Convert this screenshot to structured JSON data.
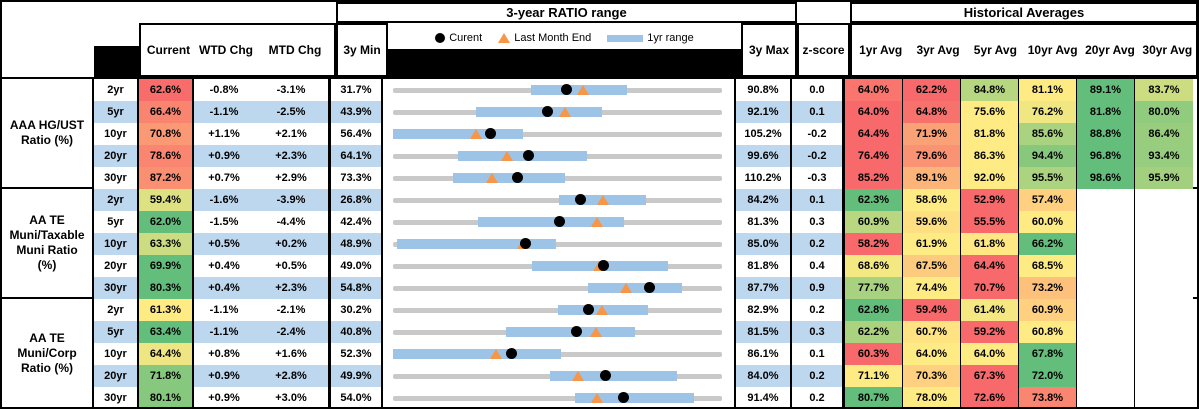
{
  "titles": {
    "range_header": "3-year RATIO range",
    "hist_header": "Historical Averages"
  },
  "legend": {
    "current": "Curent",
    "last_month": "Last Month End",
    "range": "1yr range"
  },
  "columns": {
    "current": "Current",
    "wtd": "WTD Chg",
    "mtd": "MTD Chg",
    "min": "3y Min",
    "max": "3y Max",
    "z": "z-score",
    "avgs": [
      "1yr Avg",
      "3yr Avg",
      "5yr Avg",
      "10yr Avg",
      "20yr Avg",
      "30yr Avg"
    ]
  },
  "colors": {
    "scale_red": "#F8696B",
    "scale_yellow": "#FFEB84",
    "scale_green": "#63BE7B",
    "stripe_blue": "#BDD7EE",
    "range_bar_blue": "#9DC3E6",
    "track_gray": "#C9C9C9",
    "triangle_orange": "#F79646",
    "marker_black": "#000000"
  },
  "chart_data": {
    "type": "table",
    "note": "Muni ratio dashboard: per-row dot = Current, triangle = Last Month End (current - MTD chg), blue bar = 1yr range plotted on 3yMin..3yMax axis",
    "sections": [
      {
        "label": "AAA HG/UST Ratio (%)",
        "label_lines": [
          "AAA HG/UST",
          "Ratio (%)"
        ],
        "rows": [
          {
            "tenor": "2yr",
            "current": 62.6,
            "wtd": -0.8,
            "mtd": -3.1,
            "min3y": 31.7,
            "max3y": 90.8,
            "z": 0.0,
            "range1yr": [
              56.4,
              73.4
            ],
            "avgs": [
              64.0,
              62.2,
              84.8,
              81.1,
              89.1,
              83.7
            ]
          },
          {
            "tenor": "5yr",
            "current": 66.4,
            "wtd": -1.1,
            "mtd": -2.5,
            "min3y": 43.9,
            "max3y": 92.1,
            "z": 0.1,
            "range1yr": [
              56.0,
              74.4
            ],
            "avgs": [
              64.0,
              64.8,
              75.6,
              76.2,
              81.8,
              80.0
            ]
          },
          {
            "tenor": "10yr",
            "current": 70.8,
            "wtd": 1.1,
            "mtd": 2.1,
            "min3y": 56.4,
            "max3y": 105.2,
            "z": -0.2,
            "range1yr": [
              56.4,
              75.6
            ],
            "avgs": [
              64.4,
              71.9,
              81.8,
              85.6,
              88.8,
              86.4
            ]
          },
          {
            "tenor": "20yr",
            "current": 78.6,
            "wtd": 0.9,
            "mtd": 2.3,
            "min3y": 64.1,
            "max3y": 99.6,
            "z": -0.2,
            "range1yr": [
              71.1,
              84.9
            ],
            "avgs": [
              76.4,
              79.6,
              86.3,
              94.4,
              96.8,
              93.4
            ]
          },
          {
            "tenor": "30yr",
            "current": 87.2,
            "wtd": 0.7,
            "mtd": 2.9,
            "min3y": 73.3,
            "max3y": 110.2,
            "z": -0.3,
            "range1yr": [
              80.0,
              92.5
            ],
            "avgs": [
              85.2,
              89.1,
              92.0,
              95.5,
              98.6,
              95.9
            ]
          }
        ]
      },
      {
        "label": "AA TE Muni/Taxable Muni Ratio (%)",
        "label_lines": [
          "AA TE",
          "Muni/Taxable",
          "Muni Ratio",
          "(%)"
        ],
        "rows": [
          {
            "tenor": "2yr",
            "current": 59.4,
            "wtd": -1.6,
            "mtd": -3.9,
            "min3y": 26.8,
            "max3y": 84.2,
            "z": 0.1,
            "range1yr": [
              55.5,
              70.6
            ],
            "avgs": [
              62.3,
              58.6,
              52.9,
              57.4,
              null,
              null
            ]
          },
          {
            "tenor": "5yr",
            "current": 62.0,
            "wtd": -1.5,
            "mtd": -4.4,
            "min3y": 42.4,
            "max3y": 81.3,
            "z": 0.3,
            "range1yr": [
              52.4,
              69.6
            ],
            "avgs": [
              60.9,
              59.6,
              55.5,
              60.0,
              null,
              null
            ]
          },
          {
            "tenor": "10yr",
            "current": 63.3,
            "wtd": 0.5,
            "mtd": 0.2,
            "min3y": 48.9,
            "max3y": 85.0,
            "z": 0.2,
            "range1yr": [
              49.3,
              66.7
            ],
            "avgs": [
              58.2,
              61.9,
              61.8,
              66.2,
              null,
              null
            ]
          },
          {
            "tenor": "20yr",
            "current": 69.9,
            "wtd": 0.4,
            "mtd": 0.5,
            "min3y": 49.0,
            "max3y": 81.8,
            "z": 0.4,
            "range1yr": [
              62.8,
              76.3
            ],
            "avgs": [
              68.6,
              67.5,
              64.4,
              68.5,
              null,
              null
            ]
          },
          {
            "tenor": "30yr",
            "current": 80.3,
            "wtd": 0.4,
            "mtd": 2.3,
            "min3y": 54.8,
            "max3y": 87.7,
            "z": 0.9,
            "range1yr": [
              74.2,
              83.5
            ],
            "avgs": [
              77.7,
              74.4,
              70.7,
              73.2,
              null,
              null
            ]
          }
        ]
      },
      {
        "label": "AA TE Muni/Corp Ratio (%)",
        "label_lines": [
          "AA TE",
          "Muni/Corp",
          "Ratio (%)"
        ],
        "rows": [
          {
            "tenor": "2yr",
            "current": 61.3,
            "wtd": -1.1,
            "mtd": -2.1,
            "min3y": 30.2,
            "max3y": 82.9,
            "z": 0.2,
            "range1yr": [
              56.4,
              70.8
            ],
            "avgs": [
              62.8,
              59.4,
              61.4,
              60.9,
              null,
              null
            ]
          },
          {
            "tenor": "5yr",
            "current": 63.4,
            "wtd": -1.1,
            "mtd": -2.4,
            "min3y": 40.8,
            "max3y": 81.5,
            "z": 0.3,
            "range1yr": [
              54.7,
              70.5
            ],
            "avgs": [
              62.2,
              60.7,
              59.2,
              60.8,
              null,
              null
            ]
          },
          {
            "tenor": "10yr",
            "current": 64.4,
            "wtd": 0.8,
            "mtd": 1.6,
            "min3y": 52.3,
            "max3y": 86.1,
            "z": 0.1,
            "range1yr": [
              52.3,
              69.5
            ],
            "avgs": [
              60.3,
              64.0,
              64.0,
              67.8,
              null,
              null
            ]
          },
          {
            "tenor": "20yr",
            "current": 71.8,
            "wtd": 0.9,
            "mtd": 2.8,
            "min3y": 49.9,
            "max3y": 84.0,
            "z": 0.2,
            "range1yr": [
              66.1,
              79.2
            ],
            "avgs": [
              71.1,
              70.3,
              67.3,
              72.0,
              null,
              null
            ]
          },
          {
            "tenor": "30yr",
            "current": 80.1,
            "wtd": 0.9,
            "mtd": 3.0,
            "min3y": 54.0,
            "max3y": 91.4,
            "z": 0.2,
            "range1yr": [
              74.6,
              88.0
            ],
            "avgs": [
              80.7,
              78.0,
              72.6,
              73.8,
              null,
              null
            ]
          }
        ]
      }
    ]
  }
}
